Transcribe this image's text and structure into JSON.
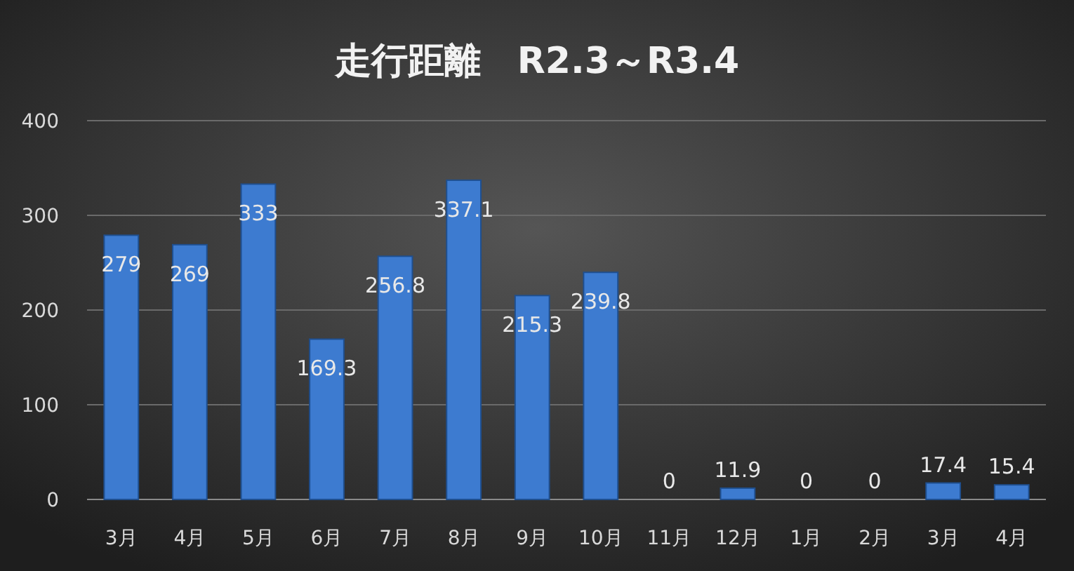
{
  "chart_data": {
    "type": "bar",
    "title": "走行距離　R2.3～R3.4",
    "categories": [
      "3月",
      "4月",
      "5月",
      "6月",
      "7月",
      "8月",
      "9月",
      "10月",
      "11月",
      "12月",
      "1月",
      "2月",
      "3月",
      "4月"
    ],
    "values": [
      279,
      269,
      333,
      169.3,
      256.8,
      337.1,
      215.3,
      239.8,
      0,
      11.9,
      0,
      0,
      17.4,
      15.4
    ],
    "color": "#3d7bd0",
    "ylim": [
      0,
      400
    ],
    "yticks": [
      0,
      100,
      200,
      300,
      400
    ],
    "grid": "y",
    "data_labels": true
  }
}
